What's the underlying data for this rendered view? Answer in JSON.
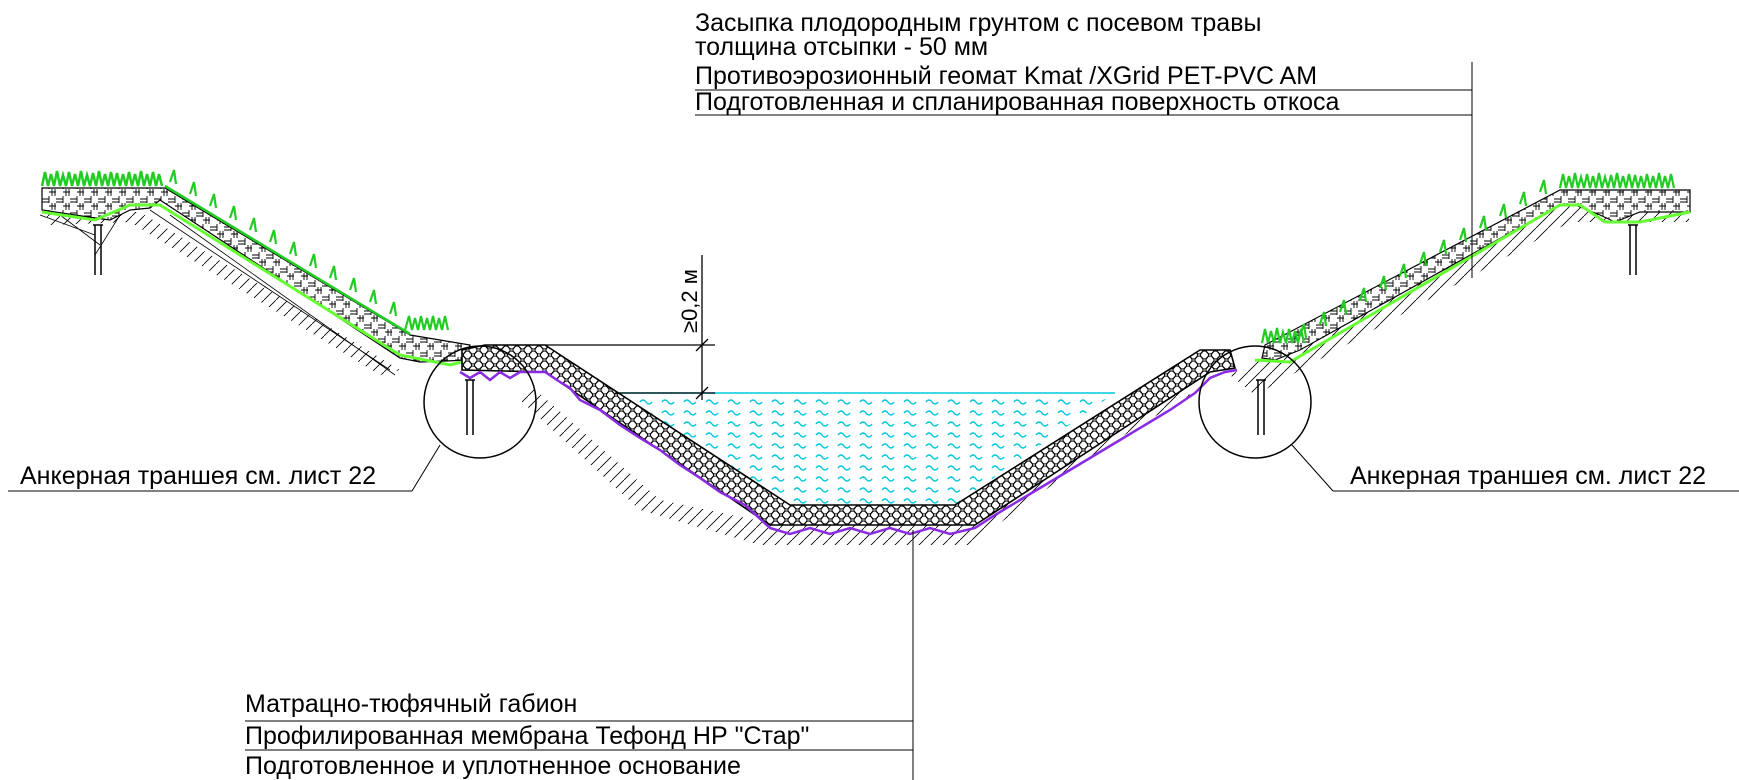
{
  "top_callout": {
    "line1": "Засыпка плодородным грунтом с посевом травы",
    "line2": "толщина отсыпки - 50 мм",
    "line3": "Противоэрозионный геомат Kmat /XGrid PET-PVC AM",
    "line4": "Подготовленная и спланированная поверхность откоса"
  },
  "dimension_label": "≥0,2 м",
  "anchor_left": "Анкерная траншея см. лист 22",
  "anchor_right": "Анкерная траншея см. лист 22",
  "bottom_callout": {
    "line1": "Матрацно-тюфячный габион",
    "line2": "Профилированная мембрана Тефонд НР \"Стар\"",
    "line3": "Подготовленное и уплотненное основание"
  },
  "colors": {
    "grass": "#22cc22",
    "geomat": "#66ff33",
    "membrane": "#8a2be2",
    "water": "#00ccdd",
    "line": "#000000"
  }
}
